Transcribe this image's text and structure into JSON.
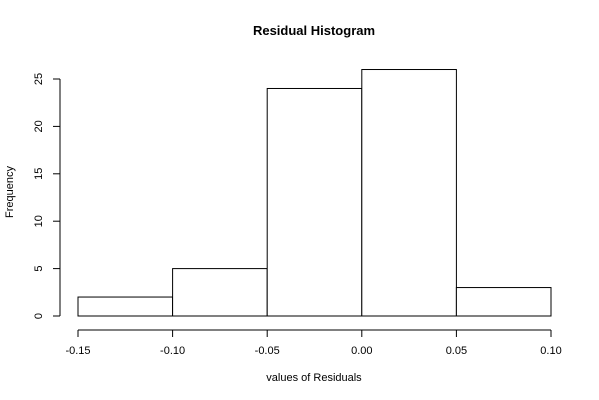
{
  "chart_data": {
    "type": "bar",
    "title": "Residual Histogram",
    "xlabel": "values of Residuals",
    "ylabel": "Frequency",
    "bins": [
      {
        "from": -0.15,
        "to": -0.1,
        "count": 2
      },
      {
        "from": -0.1,
        "to": -0.05,
        "count": 5
      },
      {
        "from": -0.05,
        "to": 0.0,
        "count": 24
      },
      {
        "from": 0.0,
        "to": 0.05,
        "count": 26
      },
      {
        "from": 0.05,
        "to": 0.1,
        "count": 3
      }
    ],
    "xlim": [
      -0.15,
      0.1
    ],
    "ylim": [
      0,
      26
    ],
    "xticks": [
      -0.15,
      -0.1,
      -0.05,
      0.0,
      0.05,
      0.1
    ],
    "xtick_labels": [
      "-0.15",
      "-0.10",
      "-0.05",
      "0.00",
      "0.05",
      "0.10"
    ],
    "yticks": [
      0,
      5,
      10,
      15,
      20,
      25
    ],
    "ytick_labels": [
      "0",
      "5",
      "10",
      "15",
      "20",
      "25"
    ],
    "grid": false,
    "legend": "none"
  }
}
